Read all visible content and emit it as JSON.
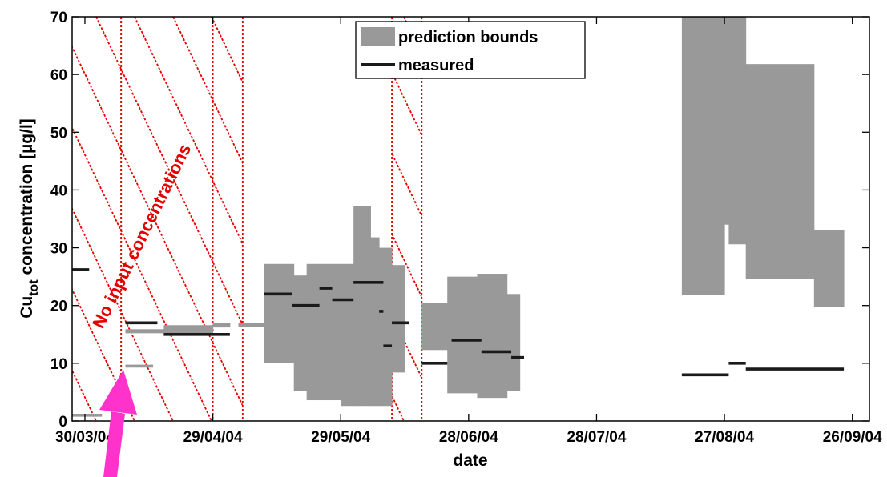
{
  "chart_data": {
    "type": "area",
    "xlabel": "date",
    "ylabel_main": "Cu",
    "ylabel_sub": "tot",
    "ylabel_rest": " concentration [µg/l]",
    "x_ticks": [
      "30/03/04",
      "29/04/04",
      "29/05/04",
      "28/06/04",
      "28/07/04",
      "27/08/04",
      "26/09/04"
    ],
    "x_tick_days": [
      0,
      30,
      60,
      90,
      120,
      150,
      180
    ],
    "x_range_days": [
      -3,
      184
    ],
    "y_ticks": [
      0,
      10,
      20,
      30,
      40,
      50,
      60,
      70
    ],
    "ylim": [
      0,
      70
    ],
    "grid": false,
    "legend_position": "top-center",
    "legend": [
      "prediction bounds",
      "measured"
    ],
    "colors": {
      "bounds": "#999999",
      "measured": "#1a1a1a",
      "measured_light": "#999999",
      "hatch": "#e60000",
      "arrow": "#ff33cc"
    },
    "annotation": {
      "text": "No input concentrations",
      "color": "#e60000"
    },
    "hatched_regions_days": [
      [
        -3,
        8.5
      ],
      [
        8.5,
        30
      ],
      [
        30,
        37
      ],
      [
        72,
        79
      ]
    ],
    "prediction_bounds_days": [
      {
        "x0": 9.5,
        "x1": 18.5,
        "y0": 15.2,
        "y1": 15.9
      },
      {
        "x0": 18.5,
        "x1": 30,
        "y0": 15.2,
        "y1": 16.6
      },
      {
        "x0": 30,
        "x1": 34,
        "y0": 16.2,
        "y1": 17.0
      },
      {
        "x0": 36,
        "x1": 42,
        "y0": 16.3,
        "y1": 17.0
      },
      {
        "x0": 42,
        "x1": 49,
        "y0": 10.0,
        "y1": 27.2
      },
      {
        "x0": 49,
        "x1": 52,
        "y0": 5.2,
        "y1": 25.2
      },
      {
        "x0": 52,
        "x1": 55,
        "y0": 3.6,
        "y1": 27.2
      },
      {
        "x0": 55,
        "x1": 60,
        "y0": 3.6,
        "y1": 27.2
      },
      {
        "x0": 60,
        "x1": 63,
        "y0": 2.6,
        "y1": 27.2
      },
      {
        "x0": 63,
        "x1": 67,
        "y0": 2.6,
        "y1": 37.2
      },
      {
        "x0": 67,
        "x1": 69,
        "y0": 2.6,
        "y1": 31.8
      },
      {
        "x0": 69,
        "x1": 72,
        "y0": 2.6,
        "y1": 30.0
      },
      {
        "x0": 72,
        "x1": 75,
        "y0": 8.4,
        "y1": 27.0
      },
      {
        "x0": 79,
        "x1": 85,
        "y0": 12.3,
        "y1": 20.4
      },
      {
        "x0": 85,
        "x1": 92,
        "y0": 4.8,
        "y1": 25.0
      },
      {
        "x0": 92,
        "x1": 99,
        "y0": 4.0,
        "y1": 25.5
      },
      {
        "x0": 99,
        "x1": 102,
        "y0": 5.2,
        "y1": 22.0
      },
      {
        "x0": 140,
        "x1": 150,
        "y0": 21.8,
        "y1": 70
      },
      {
        "x0": 150,
        "x1": 151,
        "y0": 34.0,
        "y1": 70
      },
      {
        "x0": 151,
        "x1": 155,
        "y0": 30.6,
        "y1": 70
      },
      {
        "x0": 155,
        "x1": 157,
        "y0": 24.6,
        "y1": 61.8
      },
      {
        "x0": 157,
        "x1": 171,
        "y0": 24.6,
        "y1": 61.8
      },
      {
        "x0": 171,
        "x1": 178,
        "y0": 19.8,
        "y1": 33.0
      }
    ],
    "measured_segments_days": [
      {
        "x0": -3,
        "x1": 1,
        "y": 26.2,
        "light": false
      },
      {
        "x0": 9.5,
        "x1": 17,
        "y": 17.0,
        "light": false
      },
      {
        "x0": 18.5,
        "x1": 34,
        "y": 15.0,
        "light": false
      },
      {
        "x0": 42,
        "x1": 48.5,
        "y": 22.0,
        "light": false
      },
      {
        "x0": 48.5,
        "x1": 55,
        "y": 20.0,
        "light": false
      },
      {
        "x0": 55,
        "x1": 58,
        "y": 23.0,
        "light": false
      },
      {
        "x0": 58,
        "x1": 63,
        "y": 21.0,
        "light": false
      },
      {
        "x0": 63,
        "x1": 70,
        "y": 24.0,
        "light": false
      },
      {
        "x0": 69,
        "x1": 70,
        "y": 19.0,
        "light": false
      },
      {
        "x0": 70,
        "x1": 72,
        "y": 13.0,
        "light": false
      },
      {
        "x0": 72,
        "x1": 76,
        "y": 17.0,
        "light": false
      },
      {
        "x0": 79,
        "x1": 85,
        "y": 10.0,
        "light": false
      },
      {
        "x0": 86,
        "x1": 93,
        "y": 14.0,
        "light": false
      },
      {
        "x0": 93,
        "x1": 100,
        "y": 12.0,
        "light": false
      },
      {
        "x0": 100,
        "x1": 103,
        "y": 11.0,
        "light": false
      },
      {
        "x0": 140,
        "x1": 151,
        "y": 8.0,
        "light": false
      },
      {
        "x0": 151,
        "x1": 155,
        "y": 10.0,
        "light": false
      },
      {
        "x0": 155,
        "x1": 178,
        "y": 9.0,
        "light": false
      },
      {
        "x0": -3,
        "x1": 4,
        "y": 1.0,
        "light": true
      },
      {
        "x0": 9.5,
        "x1": 16,
        "y": 9.5,
        "light": true
      },
      {
        "x0": 30,
        "x1": 34,
        "y": 16.6,
        "light": true
      },
      {
        "x0": 36,
        "x1": 42,
        "y": 16.6,
        "light": true
      }
    ]
  }
}
